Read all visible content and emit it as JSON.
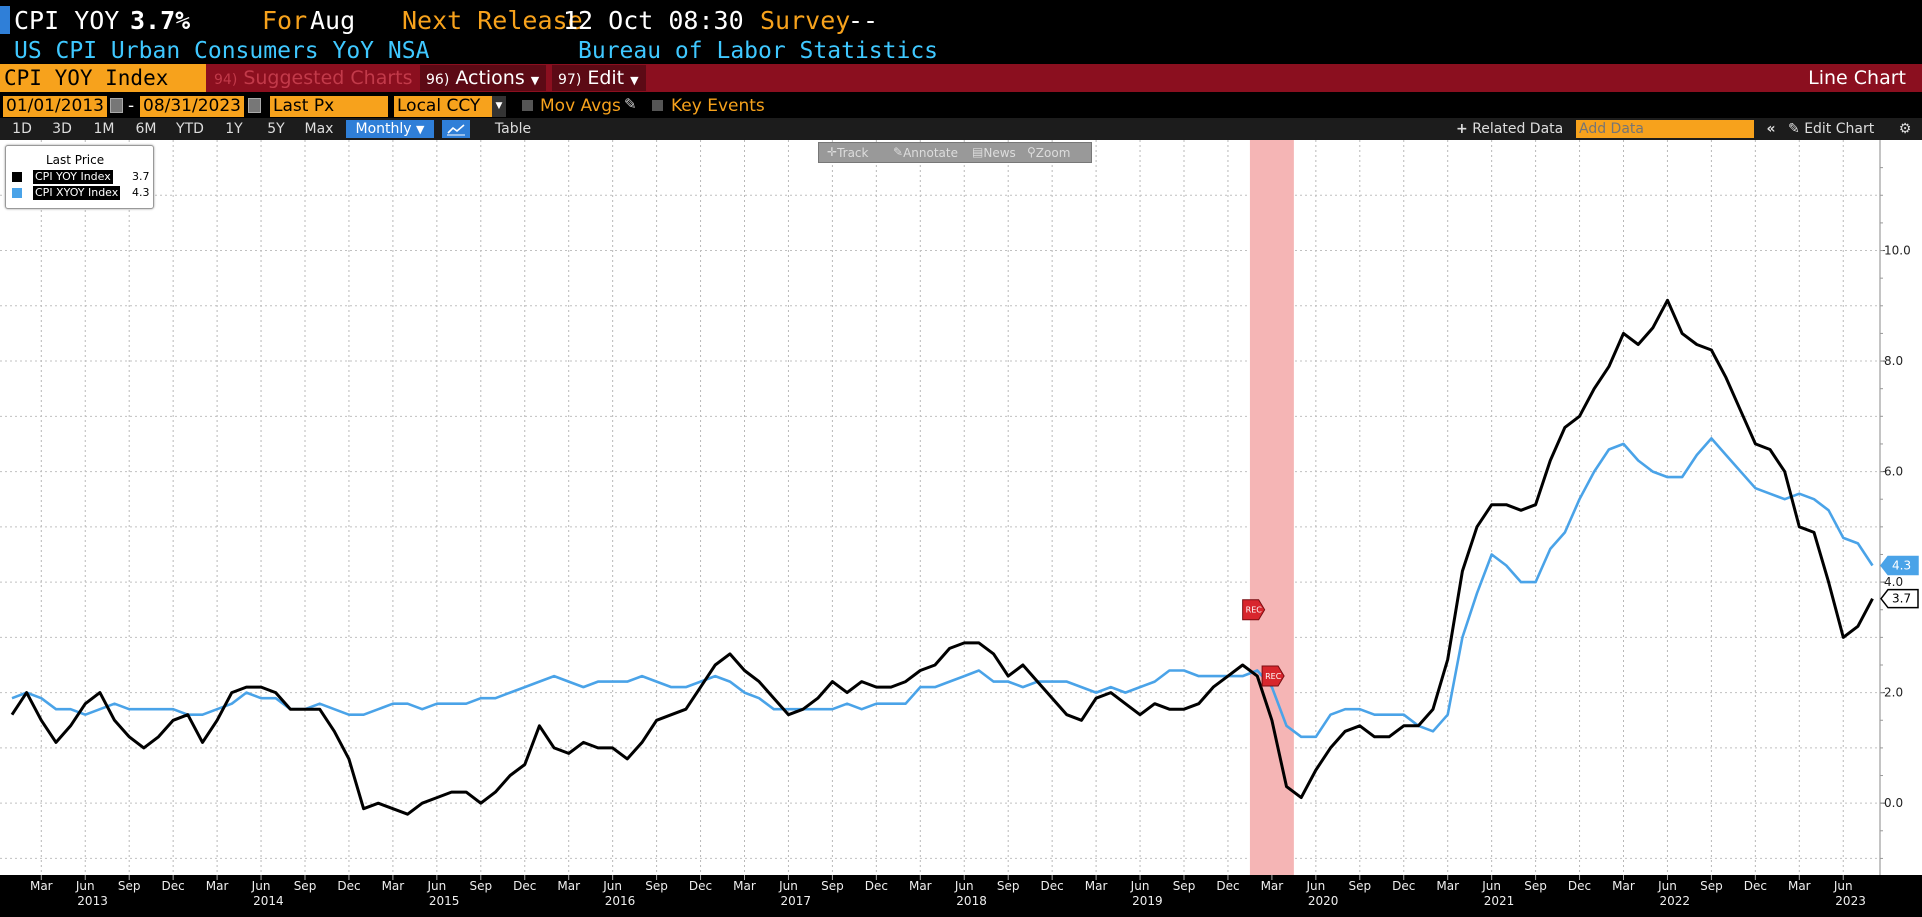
{
  "header": {
    "ticker": "CPI YOY",
    "value": "3.7%",
    "for_label": "For",
    "for_value": "Aug",
    "next_release_label": "Next Release",
    "next_release_value": "12 Oct 08:30",
    "survey_label": "Survey",
    "survey_value": "--",
    "description": "US CPI Urban Consumers YoY NSA",
    "source": "Bureau of Labor Statistics"
  },
  "toolbar": {
    "security": "CPI YOY Index",
    "suggested_num": "94)",
    "suggested": "Suggested Charts",
    "actions_num": "96)",
    "actions": "Actions",
    "edit_num": "97)",
    "edit": "Edit",
    "chart_type": "Line Chart"
  },
  "settings": {
    "start_date": "01/01/2013",
    "dash": "-",
    "end_date": "08/31/2023",
    "field": "Last Px",
    "currency": "Local CCY",
    "mov_avgs": "Mov Avgs",
    "key_events": "Key Events"
  },
  "periods": {
    "items": [
      "1D",
      "3D",
      "1M",
      "6M",
      "YTD",
      "1Y",
      "5Y",
      "Max"
    ],
    "frequency": "Monthly",
    "table": "Table",
    "related": "Related Data",
    "add_data_placeholder": "Add Data",
    "edit_chart": "Edit Chart"
  },
  "float_toolbar": {
    "track": "Track",
    "annotate": "Annotate",
    "news": "News",
    "zoom": "Zoom"
  },
  "legend": {
    "header": "Last Price"
  },
  "chart_data": {
    "type": "line",
    "x_start": "2013-01",
    "frequency": "monthly",
    "ylim": [
      -1.3,
      12.0
    ],
    "yticks": [
      0.0,
      2.0,
      4.0,
      6.0,
      8.0,
      10.0
    ],
    "ytick_labels": [
      "0.0",
      "2.0",
      "4.0",
      "6.0",
      "8.0",
      "10.0"
    ],
    "grid": true,
    "legend": "top-left",
    "month_labels": [
      "Mar",
      "Jun",
      "Sep",
      "Dec"
    ],
    "year_labels": [
      "2013",
      "2014",
      "2015",
      "2016",
      "2017",
      "2018",
      "2019",
      "2020",
      "2021",
      "2022",
      "2023"
    ],
    "recession": {
      "start": "2020-02",
      "end": "2020-04",
      "color": "#f5b5b5",
      "marker": "REC"
    },
    "series": [
      {
        "name": "CPI YOY Index",
        "last": "3.7",
        "color": "#000000",
        "values": [
          1.6,
          2.0,
          1.5,
          1.1,
          1.4,
          1.8,
          2.0,
          1.5,
          1.2,
          1.0,
          1.2,
          1.5,
          1.6,
          1.1,
          1.5,
          2.0,
          2.1,
          2.1,
          2.0,
          1.7,
          1.7,
          1.7,
          1.3,
          0.8,
          -0.1,
          0.0,
          -0.1,
          -0.2,
          0.0,
          0.1,
          0.2,
          0.2,
          0.0,
          0.2,
          0.5,
          0.7,
          1.4,
          1.0,
          0.9,
          1.1,
          1.0,
          1.0,
          0.8,
          1.1,
          1.5,
          1.6,
          1.7,
          2.1,
          2.5,
          2.7,
          2.4,
          2.2,
          1.9,
          1.6,
          1.7,
          1.9,
          2.2,
          2.0,
          2.2,
          2.1,
          2.1,
          2.2,
          2.4,
          2.5,
          2.8,
          2.9,
          2.9,
          2.7,
          2.3,
          2.5,
          2.2,
          1.9,
          1.6,
          1.5,
          1.9,
          2.0,
          1.8,
          1.6,
          1.8,
          1.7,
          1.7,
          1.8,
          2.1,
          2.3,
          2.5,
          2.3,
          1.5,
          0.3,
          0.1,
          0.6,
          1.0,
          1.3,
          1.4,
          1.2,
          1.2,
          1.4,
          1.4,
          1.7,
          2.6,
          4.2,
          5.0,
          5.4,
          5.4,
          5.3,
          5.4,
          6.2,
          6.8,
          7.0,
          7.5,
          7.9,
          8.5,
          8.3,
          8.6,
          9.1,
          8.5,
          8.3,
          8.2,
          7.7,
          7.1,
          6.5,
          6.4,
          6.0,
          5.0,
          4.9,
          4.0,
          3.0,
          3.2,
          3.7
        ]
      },
      {
        "name": "CPI XYOY Index",
        "last": "4.3",
        "color": "#4aa3e8",
        "values": [
          1.9,
          2.0,
          1.9,
          1.7,
          1.7,
          1.6,
          1.7,
          1.8,
          1.7,
          1.7,
          1.7,
          1.7,
          1.6,
          1.6,
          1.7,
          1.8,
          2.0,
          1.9,
          1.9,
          1.7,
          1.7,
          1.8,
          1.7,
          1.6,
          1.6,
          1.7,
          1.8,
          1.8,
          1.7,
          1.8,
          1.8,
          1.8,
          1.9,
          1.9,
          2.0,
          2.1,
          2.2,
          2.3,
          2.2,
          2.1,
          2.2,
          2.2,
          2.2,
          2.3,
          2.2,
          2.1,
          2.1,
          2.2,
          2.3,
          2.2,
          2.0,
          1.9,
          1.7,
          1.7,
          1.7,
          1.7,
          1.7,
          1.8,
          1.7,
          1.8,
          1.8,
          1.8,
          2.1,
          2.1,
          2.2,
          2.3,
          2.4,
          2.2,
          2.2,
          2.1,
          2.2,
          2.2,
          2.2,
          2.1,
          2.0,
          2.1,
          2.0,
          2.1,
          2.2,
          2.4,
          2.4,
          2.3,
          2.3,
          2.3,
          2.3,
          2.4,
          2.1,
          1.4,
          1.2,
          1.2,
          1.6,
          1.7,
          1.7,
          1.6,
          1.6,
          1.6,
          1.4,
          1.3,
          1.6,
          3.0,
          3.8,
          4.5,
          4.3,
          4.0,
          4.0,
          4.6,
          4.9,
          5.5,
          6.0,
          6.4,
          6.5,
          6.2,
          6.0,
          5.9,
          5.9,
          6.3,
          6.6,
          6.3,
          6.0,
          5.7,
          5.6,
          5.5,
          5.6,
          5.5,
          5.3,
          4.8,
          4.7,
          4.3
        ]
      }
    ]
  },
  "colors": {
    "orange": "#f7a21c",
    "cyan": "#3fc8ff",
    "red_bar": "#8b0f1f",
    "active_blue": "#2f7fd8"
  }
}
